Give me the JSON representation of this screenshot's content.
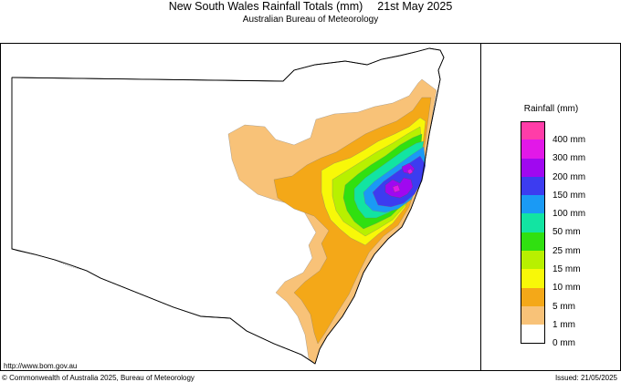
{
  "header": {
    "title": "New South Wales Rainfall Totals (mm)",
    "date": "21st May 2025",
    "subtitle": "Australian Bureau of Meteorology"
  },
  "legend": {
    "title": "Rainfall (mm)",
    "items": [
      {
        "color": "#ff3da8",
        "label": "400 mm"
      },
      {
        "color": "#e218e8",
        "label": "300 mm"
      },
      {
        "color": "#a008f0",
        "label": "200 mm"
      },
      {
        "color": "#3c3cf0",
        "label": "150 mm"
      },
      {
        "color": "#1a9af5",
        "label": "100 mm"
      },
      {
        "color": "#12e4a2",
        "label": "50 mm"
      },
      {
        "color": "#30e010",
        "label": "25 mm"
      },
      {
        "color": "#b8f000",
        "label": "15 mm"
      },
      {
        "color": "#f8f808",
        "label": "10 mm"
      },
      {
        "color": "#f4a818",
        "label": "5 mm"
      },
      {
        "color": "#f8c278",
        "label": "1 mm"
      },
      {
        "color": "#ffffff",
        "label": "0 mm"
      }
    ]
  },
  "footer": {
    "url": "http://www.bom.gov.au",
    "copyright": "© Commonwealth of Australia 2025, Bureau of Meteorology",
    "issued": "Issued: 21/05/2025"
  }
}
